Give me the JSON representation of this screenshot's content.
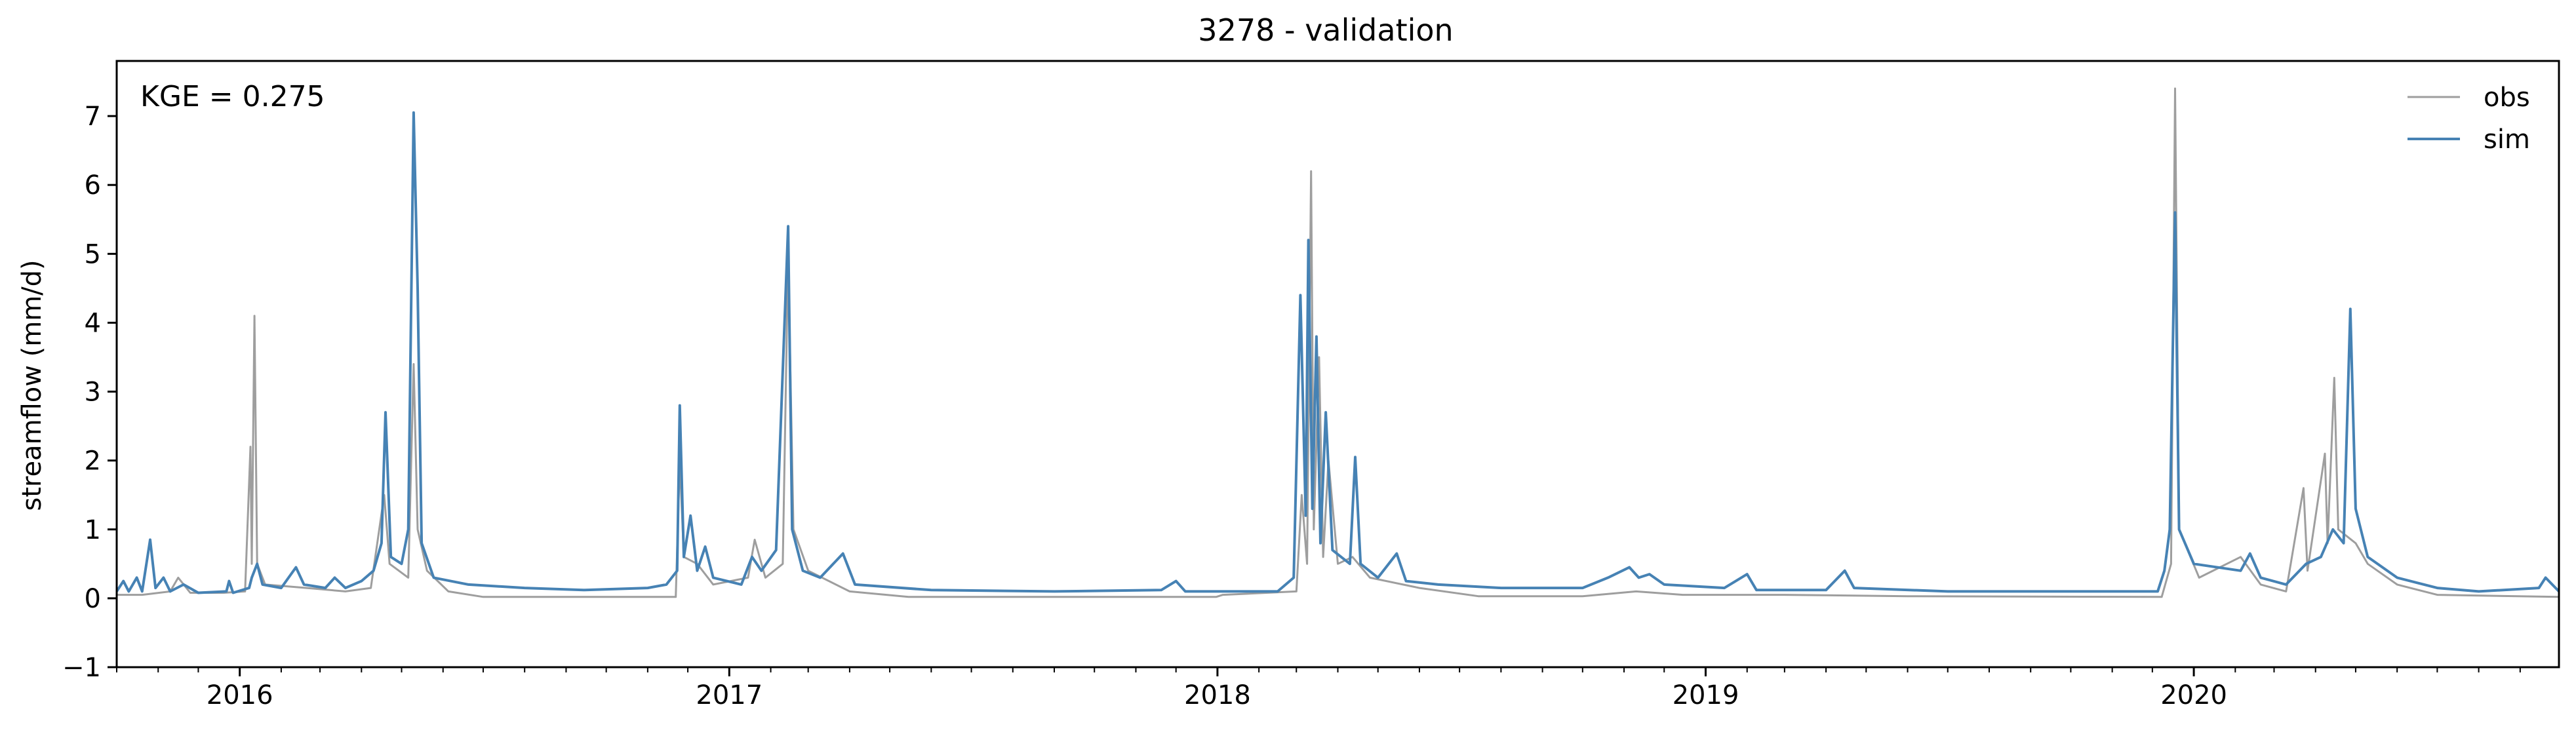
{
  "chart_data": {
    "type": "line",
    "title": "3278 - validation",
    "ylabel": "streamflow (mm/d)",
    "xlabel": "",
    "annotation": "KGE = 0.275",
    "x_range": [
      "2015-10-01",
      "2020-09-30"
    ],
    "ylim": [
      -1,
      7.8
    ],
    "y_ticks": [
      -1,
      0,
      1,
      2,
      3,
      4,
      5,
      6,
      7
    ],
    "x_ticks": [
      {
        "date": "2016-01-01",
        "label": "2016"
      },
      {
        "date": "2017-01-01",
        "label": "2017"
      },
      {
        "date": "2018-01-01",
        "label": "2018"
      },
      {
        "date": "2019-01-01",
        "label": "2019"
      },
      {
        "date": "2020-01-01",
        "label": "2020"
      }
    ],
    "grid": false,
    "legend": "top-right",
    "series": [
      {
        "name": "obs",
        "color": "#9e9e9e",
        "points": [
          [
            "2015-10-01",
            0.05
          ],
          [
            "2015-10-20",
            0.05
          ],
          [
            "2015-11-10",
            0.1
          ],
          [
            "2015-11-16",
            0.3
          ],
          [
            "2015-11-25",
            0.08
          ],
          [
            "2015-12-20",
            0.08
          ],
          [
            "2016-01-05",
            0.1
          ],
          [
            "2016-01-09",
            2.2
          ],
          [
            "2016-01-10",
            0.5
          ],
          [
            "2016-01-12",
            4.1
          ],
          [
            "2016-01-14",
            0.5
          ],
          [
            "2016-01-20",
            0.2
          ],
          [
            "2016-02-20",
            0.15
          ],
          [
            "2016-03-20",
            0.1
          ],
          [
            "2016-04-08",
            0.15
          ],
          [
            "2016-04-18",
            1.5
          ],
          [
            "2016-04-22",
            0.5
          ],
          [
            "2016-05-06",
            0.3
          ],
          [
            "2016-05-10",
            3.4
          ],
          [
            "2016-05-13",
            1.0
          ],
          [
            "2016-05-20",
            0.4
          ],
          [
            "2016-06-05",
            0.1
          ],
          [
            "2016-07-01",
            0.02
          ],
          [
            "2016-11-22",
            0.02
          ],
          [
            "2016-11-25",
            2.0
          ],
          [
            "2016-11-28",
            0.6
          ],
          [
            "2016-12-08",
            0.5
          ],
          [
            "2016-12-20",
            0.2
          ],
          [
            "2017-01-15",
            0.3
          ],
          [
            "2017-01-20",
            0.85
          ],
          [
            "2017-01-28",
            0.3
          ],
          [
            "2017-02-10",
            0.5
          ],
          [
            "2017-02-14",
            5.0
          ],
          [
            "2017-02-18",
            1.0
          ],
          [
            "2017-03-01",
            0.4
          ],
          [
            "2017-04-01",
            0.1
          ],
          [
            "2017-05-15",
            0.02
          ],
          [
            "2017-12-31",
            0.02
          ],
          [
            "2018-01-05",
            0.05
          ],
          [
            "2018-03-01",
            0.1
          ],
          [
            "2018-03-05",
            1.5
          ],
          [
            "2018-03-09",
            0.5
          ],
          [
            "2018-03-12",
            6.2
          ],
          [
            "2018-03-14",
            1.0
          ],
          [
            "2018-03-18",
            3.5
          ],
          [
            "2018-03-21",
            0.6
          ],
          [
            "2018-03-25",
            2.0
          ],
          [
            "2018-04-01",
            0.5
          ],
          [
            "2018-04-12",
            0.6
          ],
          [
            "2018-04-25",
            0.3
          ],
          [
            "2018-06-01",
            0.15
          ],
          [
            "2018-07-15",
            0.03
          ],
          [
            "2018-10-01",
            0.03
          ],
          [
            "2018-11-10",
            0.1
          ],
          [
            "2018-12-15",
            0.05
          ],
          [
            "2019-03-01",
            0.05
          ],
          [
            "2019-06-01",
            0.03
          ],
          [
            "2019-12-08",
            0.02
          ],
          [
            "2019-12-15",
            0.5
          ],
          [
            "2019-12-18",
            7.4
          ],
          [
            "2019-12-21",
            1.0
          ],
          [
            "2020-01-05",
            0.3
          ],
          [
            "2020-02-05",
            0.6
          ],
          [
            "2020-02-20",
            0.2
          ],
          [
            "2020-03-10",
            0.1
          ],
          [
            "2020-03-23",
            1.6
          ],
          [
            "2020-03-26",
            0.4
          ],
          [
            "2020-04-08",
            2.1
          ],
          [
            "2020-04-10",
            0.8
          ],
          [
            "2020-04-15",
            3.2
          ],
          [
            "2020-04-18",
            1.0
          ],
          [
            "2020-05-01",
            0.8
          ],
          [
            "2020-05-10",
            0.5
          ],
          [
            "2020-06-01",
            0.2
          ],
          [
            "2020-07-01",
            0.05
          ],
          [
            "2020-09-30",
            0.02
          ]
        ]
      },
      {
        "name": "sim",
        "color": "#4682b4",
        "points": [
          [
            "2015-10-01",
            0.1
          ],
          [
            "2015-10-06",
            0.25
          ],
          [
            "2015-10-10",
            0.1
          ],
          [
            "2015-10-16",
            0.3
          ],
          [
            "2015-10-20",
            0.1
          ],
          [
            "2015-10-26",
            0.85
          ],
          [
            "2015-10-30",
            0.15
          ],
          [
            "2015-11-05",
            0.3
          ],
          [
            "2015-11-10",
            0.1
          ],
          [
            "2015-11-20",
            0.2
          ],
          [
            "2015-12-01",
            0.08
          ],
          [
            "2015-12-22",
            0.1
          ],
          [
            "2015-12-24",
            0.25
          ],
          [
            "2015-12-27",
            0.08
          ],
          [
            "2016-01-08",
            0.15
          ],
          [
            "2016-01-10",
            0.3
          ],
          [
            "2016-01-14",
            0.5
          ],
          [
            "2016-01-18",
            0.2
          ],
          [
            "2016-02-01",
            0.15
          ],
          [
            "2016-02-12",
            0.45
          ],
          [
            "2016-02-18",
            0.2
          ],
          [
            "2016-03-05",
            0.15
          ],
          [
            "2016-03-12",
            0.3
          ],
          [
            "2016-03-20",
            0.15
          ],
          [
            "2016-04-01",
            0.25
          ],
          [
            "2016-04-10",
            0.4
          ],
          [
            "2016-04-16",
            0.8
          ],
          [
            "2016-04-19",
            2.7
          ],
          [
            "2016-04-23",
            0.6
          ],
          [
            "2016-05-01",
            0.5
          ],
          [
            "2016-05-06",
            1.0
          ],
          [
            "2016-05-10",
            7.05
          ],
          [
            "2016-05-13",
            4.5
          ],
          [
            "2016-05-16",
            0.8
          ],
          [
            "2016-05-25",
            0.3
          ],
          [
            "2016-06-20",
            0.2
          ],
          [
            "2016-08-01",
            0.15
          ],
          [
            "2016-09-15",
            0.12
          ],
          [
            "2016-11-01",
            0.15
          ],
          [
            "2016-11-15",
            0.2
          ],
          [
            "2016-11-23",
            0.4
          ],
          [
            "2016-11-25",
            2.8
          ],
          [
            "2016-11-28",
            0.6
          ],
          [
            "2016-12-03",
            1.2
          ],
          [
            "2016-12-08",
            0.4
          ],
          [
            "2016-12-14",
            0.75
          ],
          [
            "2016-12-20",
            0.3
          ],
          [
            "2017-01-10",
            0.2
          ],
          [
            "2017-01-18",
            0.6
          ],
          [
            "2017-01-25",
            0.4
          ],
          [
            "2017-02-05",
            0.7
          ],
          [
            "2017-02-14",
            5.4
          ],
          [
            "2017-02-17",
            1.0
          ],
          [
            "2017-02-25",
            0.4
          ],
          [
            "2017-03-10",
            0.3
          ],
          [
            "2017-03-27",
            0.65
          ],
          [
            "2017-04-05",
            0.2
          ],
          [
            "2017-06-01",
            0.12
          ],
          [
            "2017-09-01",
            0.1
          ],
          [
            "2017-11-20",
            0.12
          ],
          [
            "2017-12-01",
            0.25
          ],
          [
            "2017-12-08",
            0.1
          ],
          [
            "2018-02-15",
            0.1
          ],
          [
            "2018-02-27",
            0.3
          ],
          [
            "2018-03-04",
            4.4
          ],
          [
            "2018-03-08",
            1.2
          ],
          [
            "2018-03-10",
            5.2
          ],
          [
            "2018-03-13",
            1.3
          ],
          [
            "2018-03-16",
            3.8
          ],
          [
            "2018-03-19",
            0.8
          ],
          [
            "2018-03-23",
            2.7
          ],
          [
            "2018-03-28",
            0.7
          ],
          [
            "2018-04-10",
            0.5
          ],
          [
            "2018-04-14",
            2.05
          ],
          [
            "2018-04-18",
            0.5
          ],
          [
            "2018-05-01",
            0.3
          ],
          [
            "2018-05-15",
            0.65
          ],
          [
            "2018-05-22",
            0.25
          ],
          [
            "2018-06-15",
            0.2
          ],
          [
            "2018-08-01",
            0.15
          ],
          [
            "2018-10-01",
            0.15
          ],
          [
            "2018-10-20",
            0.3
          ],
          [
            "2018-11-05",
            0.45
          ],
          [
            "2018-11-12",
            0.3
          ],
          [
            "2018-11-20",
            0.35
          ],
          [
            "2018-12-01",
            0.2
          ],
          [
            "2019-01-15",
            0.15
          ],
          [
            "2019-02-01",
            0.35
          ],
          [
            "2019-02-08",
            0.12
          ],
          [
            "2019-04-01",
            0.12
          ],
          [
            "2019-04-15",
            0.4
          ],
          [
            "2019-04-22",
            0.15
          ],
          [
            "2019-07-01",
            0.1
          ],
          [
            "2019-09-15",
            0.1
          ],
          [
            "2019-12-05",
            0.1
          ],
          [
            "2019-12-10",
            0.4
          ],
          [
            "2019-12-14",
            1.0
          ],
          [
            "2019-12-18",
            5.6
          ],
          [
            "2019-12-21",
            1.0
          ],
          [
            "2020-01-01",
            0.5
          ],
          [
            "2020-02-05",
            0.4
          ],
          [
            "2020-02-12",
            0.65
          ],
          [
            "2020-02-20",
            0.3
          ],
          [
            "2020-03-10",
            0.2
          ],
          [
            "2020-03-25",
            0.5
          ],
          [
            "2020-04-05",
            0.6
          ],
          [
            "2020-04-14",
            1.0
          ],
          [
            "2020-04-22",
            0.8
          ],
          [
            "2020-04-27",
            4.2
          ],
          [
            "2020-05-01",
            1.3
          ],
          [
            "2020-05-10",
            0.6
          ],
          [
            "2020-06-01",
            0.3
          ],
          [
            "2020-07-01",
            0.15
          ],
          [
            "2020-08-01",
            0.1
          ],
          [
            "2020-09-15",
            0.15
          ],
          [
            "2020-09-20",
            0.3
          ],
          [
            "2020-09-30",
            0.1
          ]
        ]
      }
    ]
  }
}
